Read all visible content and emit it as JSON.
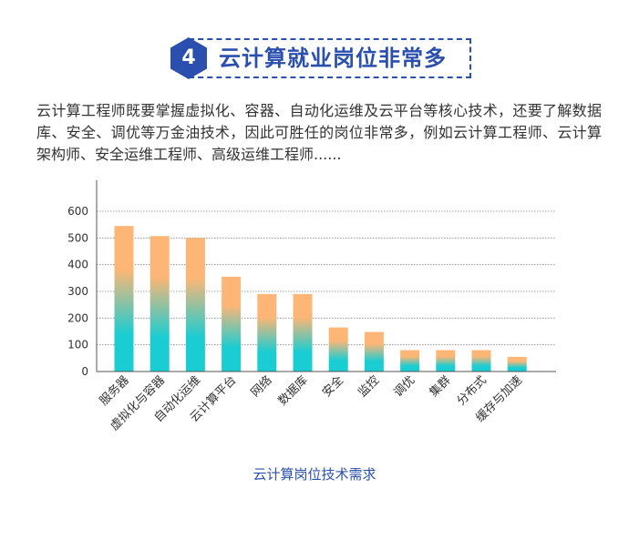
{
  "header": {
    "number": "4",
    "title": "云计算就业岗位非常多"
  },
  "intro": {
    "text": "云计算工程师既要掌握虚拟化、容器、自动化运维及云平台等核心技术，还要了解数据库、安全、调优等万金油技术，因此可胜任的岗位非常多，例如云计算工程师、云计算架构师、安全运维工程师、高级运维工程师......"
  },
  "colors": {
    "accent": "#2b4fae",
    "bar_top": "#fdb675",
    "bar_bottom": "#19cdd3"
  },
  "chart_data": {
    "type": "bar",
    "title": "云计算岗位技术需求",
    "xlabel": "",
    "ylabel": "",
    "ylim": [
      0,
      600
    ],
    "yticks": [
      0,
      100,
      200,
      300,
      400,
      500,
      600
    ],
    "grid": true,
    "categories": [
      "服务器",
      "虚拟化与容器",
      "自动化运维",
      "云计算平台",
      "网络",
      "数据库",
      "安全",
      "监控",
      "调优",
      "集群",
      "分布式",
      "缓存与加速"
    ],
    "values": [
      545,
      507,
      500,
      355,
      290,
      290,
      165,
      148,
      80,
      80,
      80,
      55
    ]
  }
}
